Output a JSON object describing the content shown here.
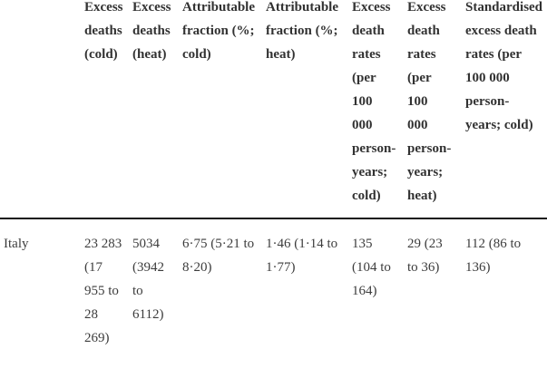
{
  "colors": {
    "background": "#ffffff",
    "header_text": "#323232",
    "body_text": "#3c3c3c",
    "rule": "#141414"
  },
  "table": {
    "columns": [
      {
        "id": "country",
        "label": ""
      },
      {
        "id": "excess_deaths_cold",
        "label": "Excess\ndeaths\n(cold)"
      },
      {
        "id": "excess_deaths_heat",
        "label": "Excess\ndeaths\n(heat)"
      },
      {
        "id": "attributable_fraction_cold",
        "label": "Attributable\nfraction (%;\ncold)"
      },
      {
        "id": "attributable_fraction_heat",
        "label": "Attributable\nfraction (%;\nheat)"
      },
      {
        "id": "excess_death_rates_cold",
        "label": "Excess\ndeath\nrates\n(per\n100\n000\nperson-\nyears;\ncold)"
      },
      {
        "id": "excess_death_rates_heat",
        "label": "Excess\ndeath\nrates\n(per\n100\n000\nperson-\nyears;\nheat)"
      },
      {
        "id": "standardised_excess_death_rates_cold",
        "label": "Standardised\nexcess death\nrates (per\n100 000\nperson-\nyears; cold)"
      }
    ],
    "rows": [
      {
        "label": "Italy",
        "cells": [
          "23 283\n(17\n955 to\n28\n269)",
          "5034\n(3942\nto\n6112)",
          "6·75 (5·21 to\n8·20)",
          "1·46 (1·14 to\n1·77)",
          "135\n(104 to\n164)",
          "29 (23\nto 36)",
          "112 (86 to\n136)"
        ]
      }
    ]
  }
}
